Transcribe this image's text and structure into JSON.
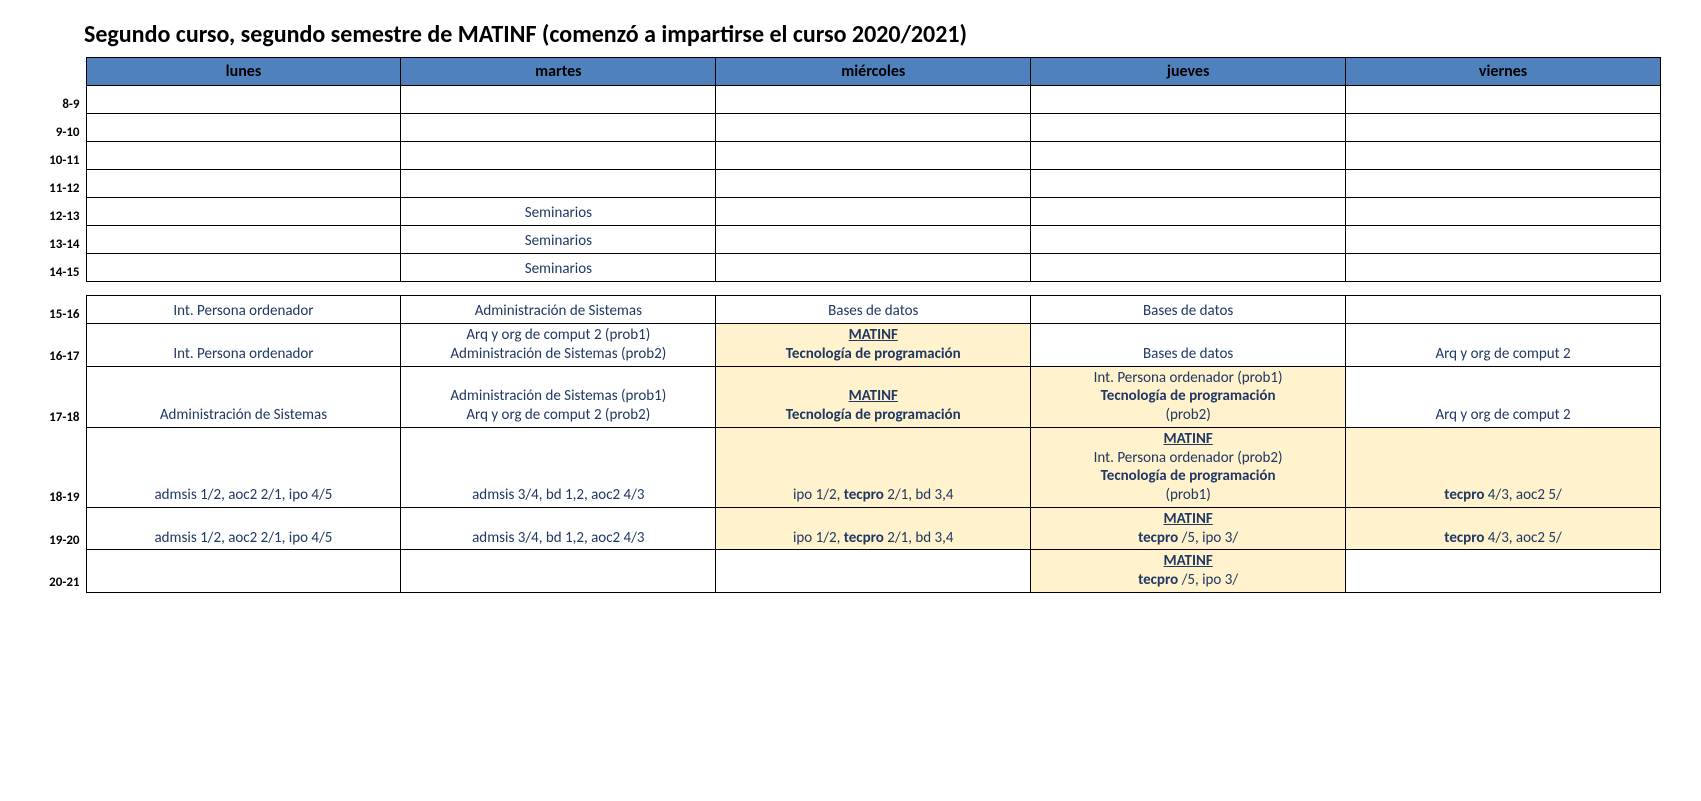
{
  "title": "Segundo curso, segundo semestre de MATINF (comenzó a impartirse el curso 2020/2021)",
  "colors": {
    "header_bg": "#4f81bd",
    "border": "#000000",
    "highlight_bg": "#fff2cc",
    "highlight_border": "#ff0000",
    "text_main": "#1f3864",
    "title_color": "#000000",
    "time_color": "#000000",
    "red": "#ff0000"
  },
  "days": [
    "lunes",
    "martes",
    "miércoles",
    "jueves",
    "viernes"
  ],
  "times": {
    "r8": "8-9",
    "r9": "9-10",
    "r10": "10-11",
    "r11": "11-12",
    "r12": "12-13",
    "r13": "13-14",
    "r14": "14-15",
    "r15": "15-16",
    "r16": "16-17",
    "r17": "17-18",
    "r18": "18-19",
    "r19": "19-20",
    "r20": "20-21"
  },
  "cells": {
    "r12_martes": "Seminarios",
    "r13_martes": "Seminarios",
    "r14_martes": "Seminarios",
    "r15_lunes": "Int. Persona ordenador",
    "r15_martes": "Administración de Sistemas",
    "r15_miercoles": "Bases de datos",
    "r15_jueves": "Bases de datos",
    "r16_lunes": "Int. Persona ordenador",
    "r16_martes_l1": "Arq y org de comput 2 (prob1)",
    "r16_martes_l2": "Administración de Sistemas (prob2)",
    "r16_miercoles_l1": "MATINF",
    "r16_miercoles_l2": "Tecnología de programación",
    "r16_jueves": "Bases de datos",
    "r16_viernes": "Arq y org de comput 2",
    "r17_lunes": "Administración de Sistemas",
    "r17_martes_l1": "Administración de Sistemas (prob1)",
    "r17_martes_l2": "Arq y org de comput 2 (prob2)",
    "r17_miercoles_l1": "MATINF",
    "r17_miercoles_l2": "Tecnología de programación",
    "r17_jueves_l1": "Int. Persona ordenador (prob1)",
    "r17_jueves_l2": "Tecnología de programación",
    "r17_jueves_l3": "(prob2)",
    "r17_viernes": "Arq y org de comput 2",
    "r18_lunes": "admsis 1/2, aoc2 2/1, ipo 4/5",
    "r18_martes": "admsis 3/4, bd 1,2, aoc2 4/3",
    "r18_miercoles_a": "ipo 1/2, ",
    "r18_miercoles_b": "tecpro",
    "r18_miercoles_c": " 2/1, bd 3,4",
    "r18_jueves_l1": "MATINF",
    "r18_jueves_l2": "Int. Persona ordenador (prob2)",
    "r18_jueves_l3": "Tecnología de programación",
    "r18_jueves_l4": "(prob1)",
    "r18_viernes_a": "tecpro",
    "r18_viernes_b": " 4/3, aoc2 5/",
    "r19_lunes": "admsis 1/2, aoc2 2/1, ipo 4/5",
    "r19_martes": "admsis 3/4, bd 1,2, aoc2 4/3",
    "r19_miercoles_a": "ipo 1/2, ",
    "r19_miercoles_b": "tecpro",
    "r19_miercoles_c": " 2/1, bd 3,4",
    "r19_jueves_l1": "MATINF",
    "r19_jueves_a": "tecpro",
    "r19_jueves_b": " /5, ipo 3/",
    "r19_viernes_a": "tecpro",
    "r19_viernes_b": " 4/3, aoc2 5/",
    "r20_jueves_l1": "MATINF",
    "r20_jueves_a": "tecpro",
    "r20_jueves_b": " /5, ipo 3/"
  }
}
